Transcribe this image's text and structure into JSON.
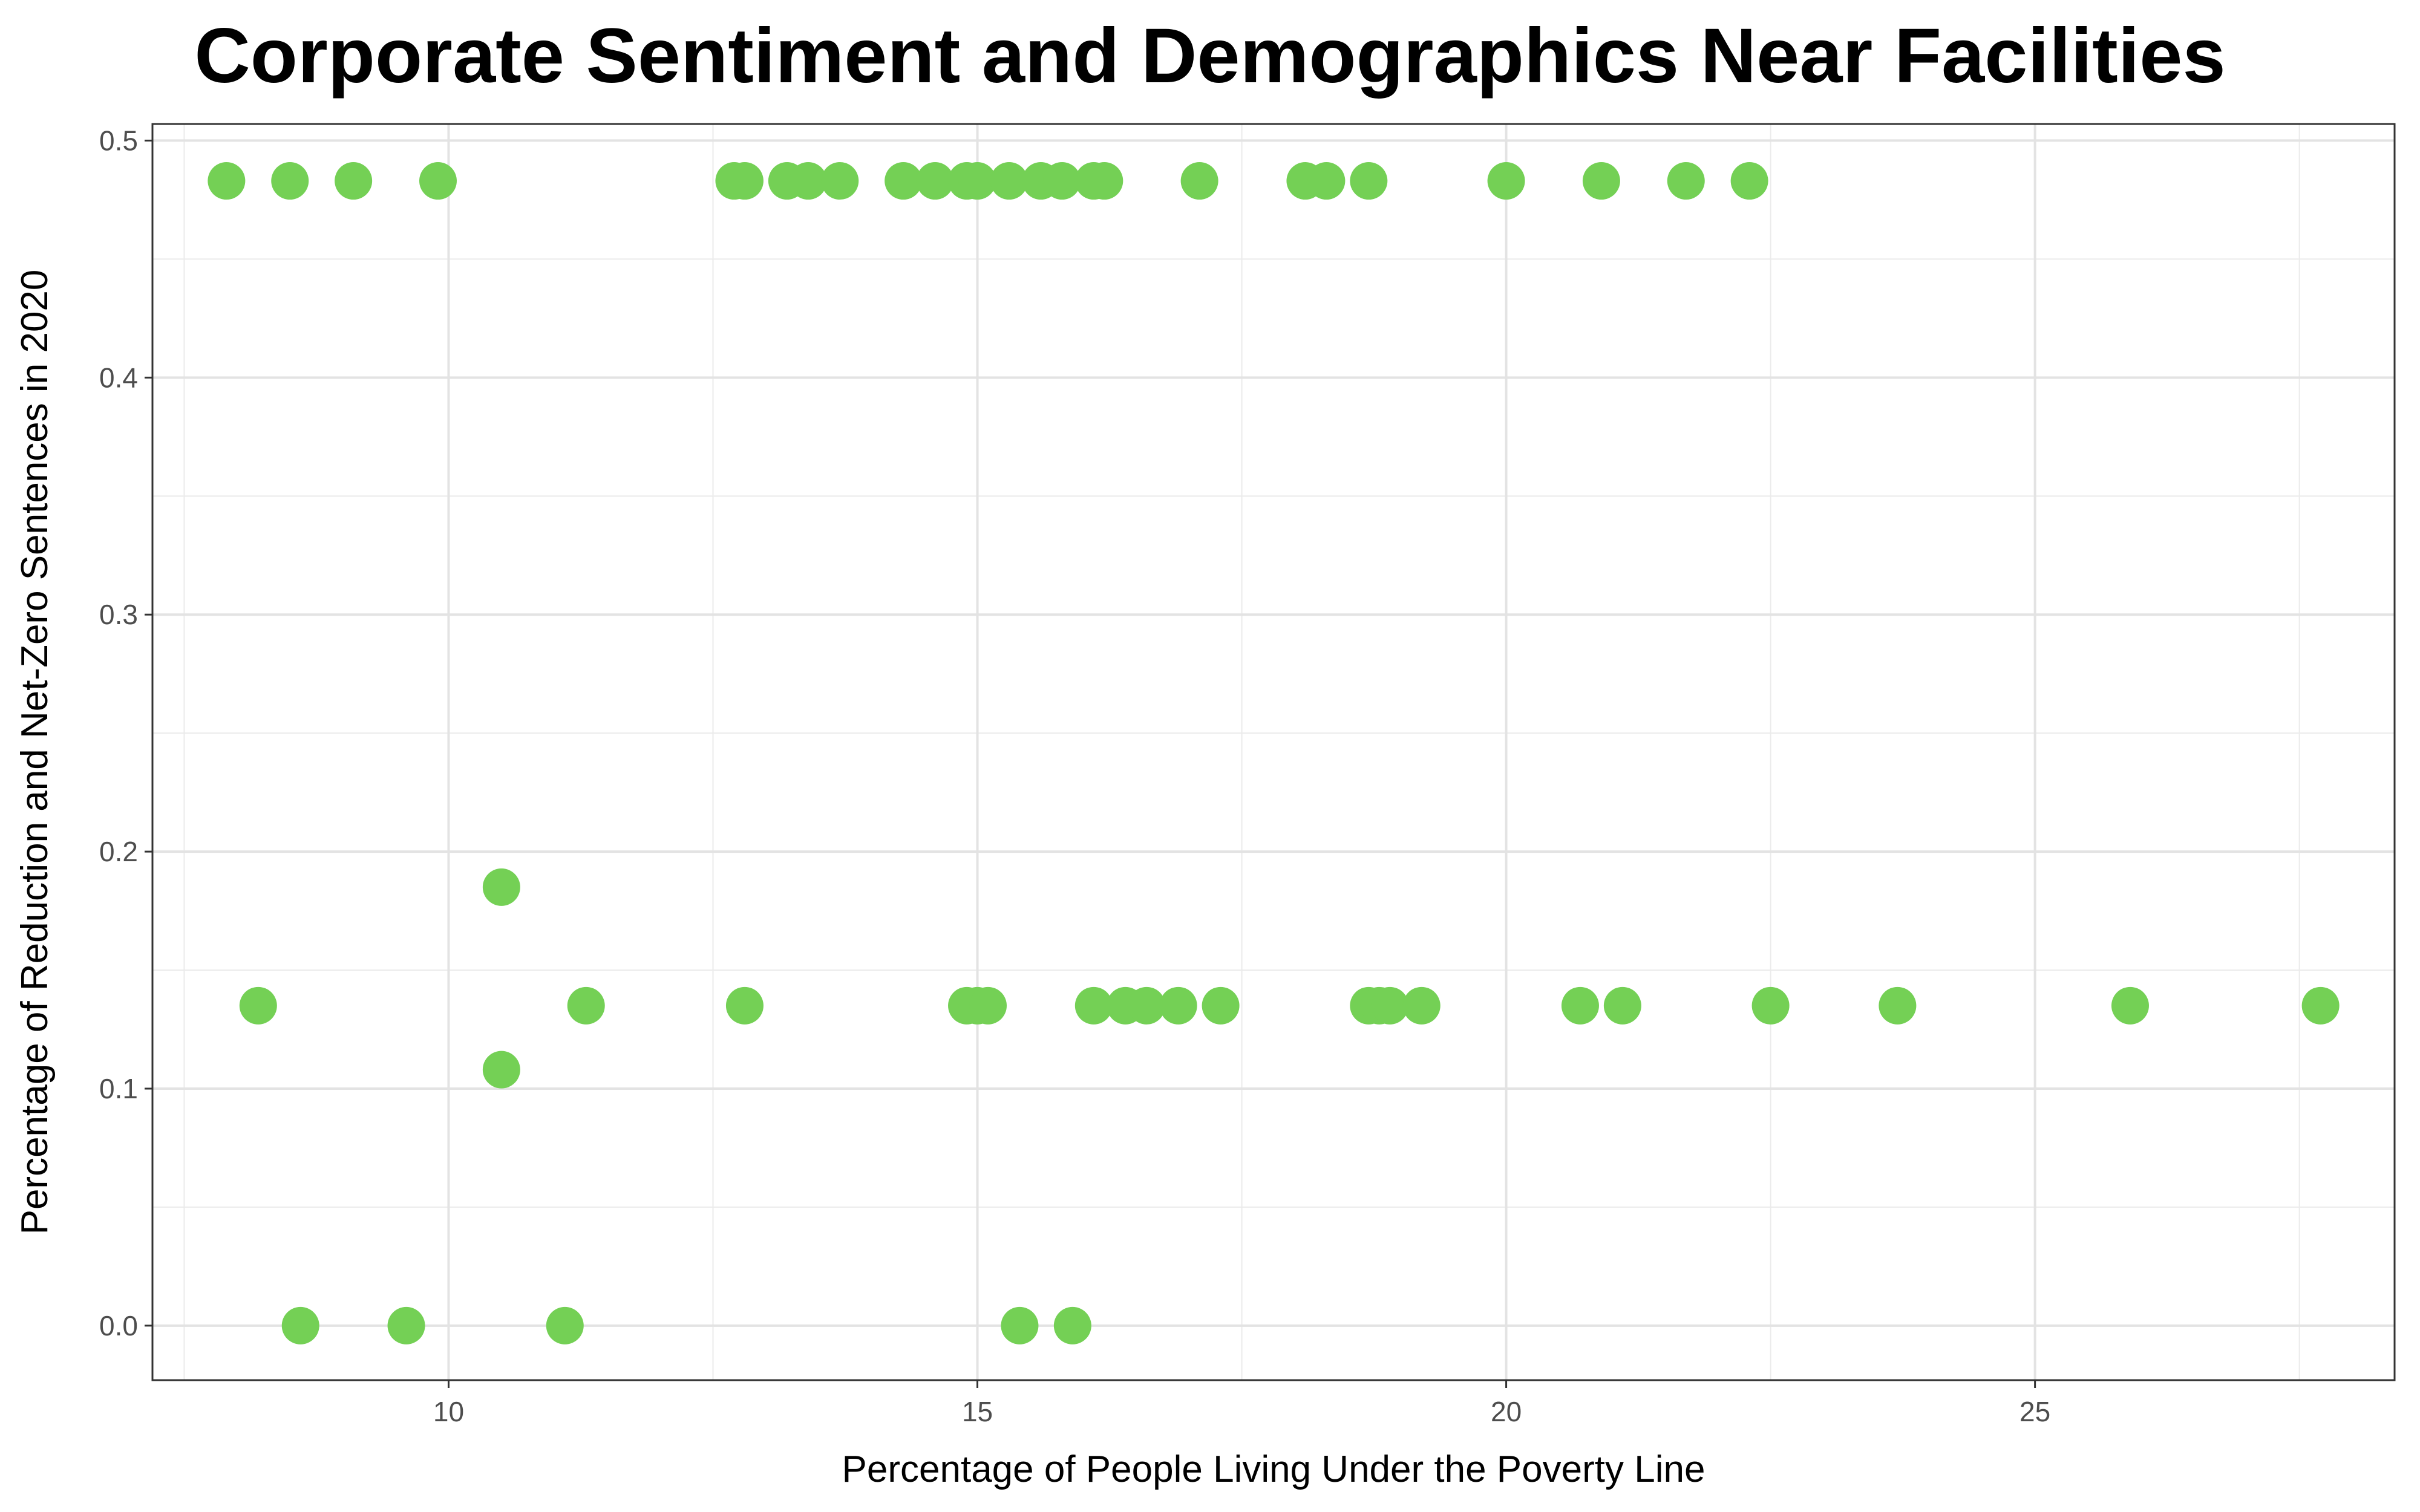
{
  "chart_data": {
    "type": "scatter",
    "title": "Corporate Sentiment and Demographics Near Facilities",
    "xlabel": "Percentage of People Living Under the Poverty Line",
    "ylabel": "Percentage of Reduction and Net-Zero Sentences in 2020",
    "xlim": [
      7.2,
      28.4
    ],
    "ylim": [
      -0.023,
      0.507
    ],
    "xticks": [
      10,
      15,
      20,
      25
    ],
    "yticks": [
      0.0,
      0.1,
      0.2,
      0.3,
      0.4,
      0.5
    ],
    "xtick_labels": [
      "10",
      "15",
      "20",
      "25"
    ],
    "ytick_labels": [
      "0.0",
      "0.1",
      "0.2",
      "0.3",
      "0.4",
      "0.5"
    ],
    "grid": true,
    "legend": "none",
    "point_color": "#74D055",
    "series": [
      {
        "points": [
          [
            7.9,
            0.483
          ],
          [
            8.5,
            0.483
          ],
          [
            9.1,
            0.483
          ],
          [
            9.9,
            0.483
          ],
          [
            12.7,
            0.483
          ],
          [
            12.8,
            0.483
          ],
          [
            13.2,
            0.483
          ],
          [
            13.4,
            0.483
          ],
          [
            13.7,
            0.483
          ],
          [
            14.3,
            0.483
          ],
          [
            14.6,
            0.483
          ],
          [
            14.9,
            0.483
          ],
          [
            15.0,
            0.483
          ],
          [
            15.3,
            0.483
          ],
          [
            15.6,
            0.483
          ],
          [
            15.8,
            0.483
          ],
          [
            16.1,
            0.483
          ],
          [
            16.2,
            0.483
          ],
          [
            17.1,
            0.483
          ],
          [
            18.1,
            0.483
          ],
          [
            18.3,
            0.483
          ],
          [
            18.7,
            0.483
          ],
          [
            20.0,
            0.483
          ],
          [
            20.9,
            0.483
          ],
          [
            21.7,
            0.483
          ],
          [
            22.3,
            0.483
          ],
          [
            10.5,
            0.185
          ],
          [
            8.2,
            0.135
          ],
          [
            11.3,
            0.135
          ],
          [
            12.8,
            0.135
          ],
          [
            14.9,
            0.135
          ],
          [
            15.0,
            0.135
          ],
          [
            15.1,
            0.135
          ],
          [
            16.1,
            0.135
          ],
          [
            16.4,
            0.135
          ],
          [
            16.6,
            0.135
          ],
          [
            16.9,
            0.135
          ],
          [
            17.3,
            0.135
          ],
          [
            18.7,
            0.135
          ],
          [
            18.8,
            0.135
          ],
          [
            18.9,
            0.135
          ],
          [
            19.2,
            0.135
          ],
          [
            20.7,
            0.135
          ],
          [
            21.1,
            0.135
          ],
          [
            22.5,
            0.135
          ],
          [
            23.7,
            0.135
          ],
          [
            25.9,
            0.135
          ],
          [
            27.7,
            0.135
          ],
          [
            10.5,
            0.108
          ],
          [
            8.6,
            0.0
          ],
          [
            9.6,
            0.0
          ],
          [
            11.1,
            0.0
          ],
          [
            15.4,
            0.0
          ],
          [
            15.9,
            0.0
          ]
        ]
      }
    ]
  }
}
